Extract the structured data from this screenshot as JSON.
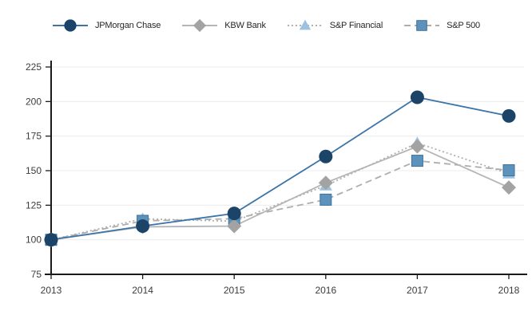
{
  "chart_data": {
    "type": "line",
    "title": "",
    "xlabel": "",
    "ylabel": "",
    "x": [
      2013,
      2014,
      2015,
      2016,
      2017,
      2018
    ],
    "xticks": [
      "2013",
      "2014",
      "2015",
      "2016",
      "2017",
      "2018"
    ],
    "yticks": [
      75,
      100,
      125,
      150,
      175,
      200,
      225
    ],
    "ylim": [
      75,
      225
    ],
    "grid": "horizontal-light",
    "legend_position": "top",
    "series": [
      {
        "name": "JPMorgan Chase",
        "values": [
          100.0,
          109.88,
          119.07,
          160.23,
          203.07,
          189.57
        ],
        "marker": "circle",
        "line_style": "solid",
        "line_color": "#3b74a8",
        "marker_color": "#1b4468"
      },
      {
        "name": "KBW Bank",
        "values": [
          100.0,
          109.36,
          109.9,
          141.23,
          167.49,
          137.82
        ],
        "marker": "diamond",
        "line_style": "solid",
        "line_color": "#b5b5b5",
        "marker_color": "#a3a3a3"
      },
      {
        "name": "S&P Financial",
        "values": [
          100.0,
          115.18,
          113.38,
          139.17,
          169.98,
          147.82
        ],
        "marker": "triangle",
        "line_style": "dotted",
        "line_color": "#b0b0b0",
        "marker_color": "#9dc1e0"
      },
      {
        "name": "S&P 500",
        "values": [
          100.0,
          113.68,
          115.24,
          129.02,
          157.17,
          150.27
        ],
        "marker": "square",
        "line_style": "dashed",
        "line_color": "#adadad",
        "marker_color": "#5b93bd",
        "marker_border_color": "#3f7099"
      }
    ],
    "colors": {
      "axis": "#1a1a1a",
      "gridline": "#ececec",
      "tick_text": "#3c3c3c"
    }
  }
}
